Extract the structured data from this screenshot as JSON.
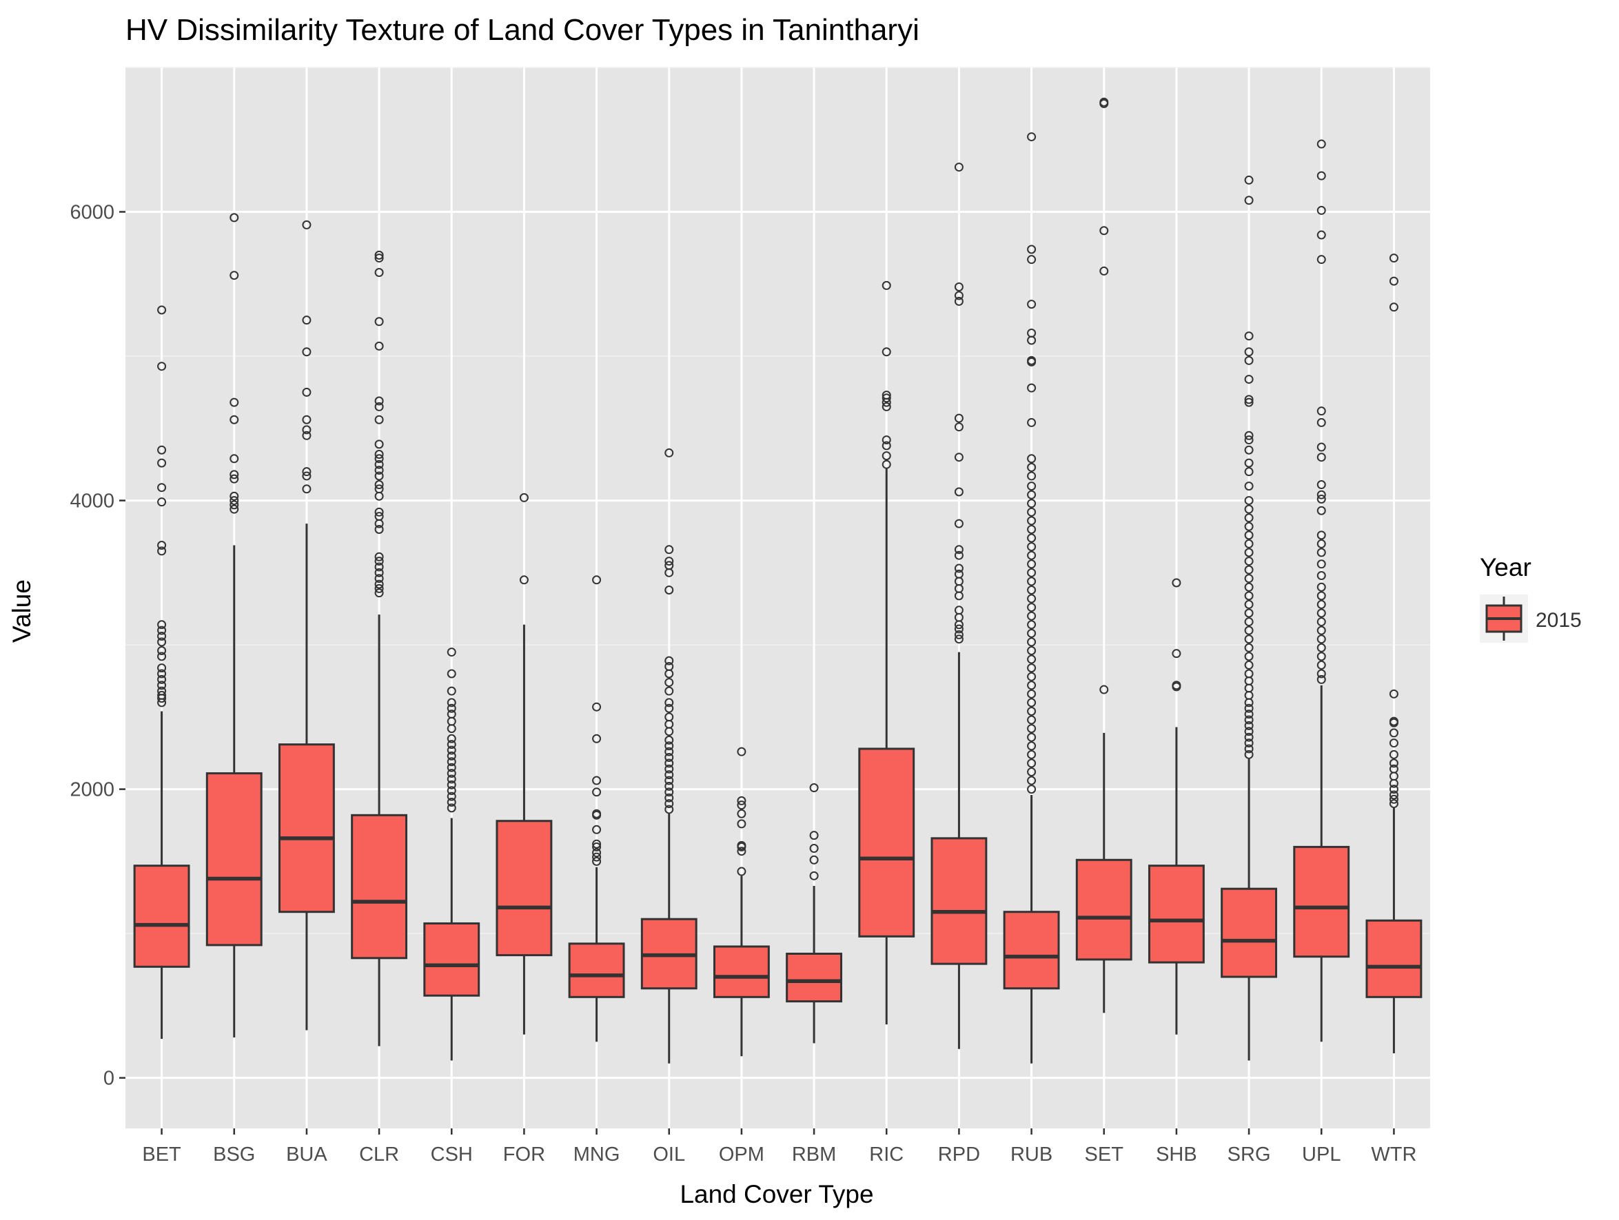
{
  "chart_data": {
    "type": "boxplot",
    "title": "HV Dissimilarity Texture of Land Cover Types in Tanintharyi",
    "xlabel": "Land Cover Type",
    "ylabel": "Value",
    "ylim": [
      -350,
      7000
    ],
    "yticks": [
      0,
      2000,
      4000,
      6000
    ],
    "grid": true,
    "background": "#e5e5e5",
    "fill_color": "#f8605a",
    "legend": {
      "title": "Year",
      "placement": "right",
      "entries": [
        {
          "label": "2015",
          "color": "#f8605a"
        }
      ]
    },
    "categories": [
      "BET",
      "BSG",
      "BUA",
      "CLR",
      "CSH",
      "FOR",
      "MNG",
      "OIL",
      "OPM",
      "RBM",
      "RIC",
      "RPD",
      "RUB",
      "SET",
      "SHB",
      "SRG",
      "UPL",
      "WTR"
    ],
    "series": [
      {
        "name": "2015",
        "boxes": [
          {
            "category": "BET",
            "min": 270,
            "q1": 770,
            "median": 1060,
            "q3": 1470,
            "max": 2540,
            "outliers": [
              2600,
              2630,
              2650,
              2680,
              2720,
              2760,
              2800,
              2840,
              2920,
              2960,
              3020,
              3060,
              3100,
              3140,
              3650,
              3690,
              3990,
              4090,
              4260,
              4350,
              4930,
              5320
            ]
          },
          {
            "category": "BSG",
            "min": 280,
            "q1": 920,
            "median": 1380,
            "q3": 2110,
            "max": 3690,
            "outliers": [
              3940,
              3970,
              4000,
              4030,
              4150,
              4180,
              4290,
              4560,
              4680,
              5560,
              5960
            ]
          },
          {
            "category": "BUA",
            "min": 330,
            "q1": 1150,
            "median": 1660,
            "q3": 2310,
            "max": 3840,
            "outliers": [
              4080,
              4170,
              4200,
              4450,
              4490,
              4560,
              4750,
              5030,
              5250,
              5910
            ]
          },
          {
            "category": "CLR",
            "min": 220,
            "q1": 830,
            "median": 1220,
            "q3": 1820,
            "max": 3210,
            "outliers": [
              3360,
              3390,
              3420,
              3460,
              3500,
              3540,
              3580,
              3610,
              3800,
              3840,
              3890,
              3920,
              4030,
              4080,
              4110,
              4170,
              4210,
              4250,
              4290,
              4320,
              4390,
              4560,
              4650,
              4690,
              5070,
              5240,
              5580,
              5680,
              5700
            ]
          },
          {
            "category": "CSH",
            "min": 120,
            "q1": 570,
            "median": 780,
            "q3": 1070,
            "max": 1800,
            "outliers": [
              1870,
              1910,
              1950,
              1990,
              2030,
              2070,
              2110,
              2150,
              2190,
              2230,
              2270,
              2310,
              2350,
              2420,
              2470,
              2520,
              2560,
              2600,
              2680,
              2800,
              2950
            ]
          },
          {
            "category": "FOR",
            "min": 300,
            "q1": 850,
            "median": 1180,
            "q3": 1780,
            "max": 3140,
            "outliers": [
              3450,
              4020
            ]
          },
          {
            "category": "MNG",
            "min": 250,
            "q1": 560,
            "median": 710,
            "q3": 930,
            "max": 1460,
            "outliers": [
              1500,
              1530,
              1560,
              1600,
              1620,
              1720,
              1820,
              1830,
              1980,
              2060,
              2350,
              2570,
              3450
            ]
          },
          {
            "category": "OIL",
            "min": 100,
            "q1": 620,
            "median": 850,
            "q3": 1100,
            "max": 1830,
            "outliers": [
              1860,
              1900,
              1940,
              1980,
              2020,
              2060,
              2100,
              2140,
              2180,
              2220,
              2260,
              2300,
              2340,
              2400,
              2450,
              2500,
              2560,
              2600,
              2680,
              2740,
              2800,
              2850,
              2890,
              3380,
              3500,
              3550,
              3580,
              3660,
              4330
            ]
          },
          {
            "category": "OPM",
            "min": 150,
            "q1": 560,
            "median": 700,
            "q3": 910,
            "max": 1400,
            "outliers": [
              1430,
              1570,
              1600,
              1610,
              1760,
              1830,
              1890,
              1920,
              2260
            ]
          },
          {
            "category": "RBM",
            "min": 240,
            "q1": 530,
            "median": 670,
            "q3": 860,
            "max": 1330,
            "outliers": [
              1400,
              1510,
              1590,
              1680,
              2010
            ]
          },
          {
            "category": "RIC",
            "min": 370,
            "q1": 980,
            "median": 1520,
            "q3": 2280,
            "max": 4220,
            "outliers": [
              4250,
              4310,
              4380,
              4420,
              4650,
              4680,
              4710,
              4730,
              5030,
              5490
            ]
          },
          {
            "category": "RPD",
            "min": 200,
            "q1": 790,
            "median": 1150,
            "q3": 1660,
            "max": 2950,
            "outliers": [
              3040,
              3070,
              3110,
              3140,
              3190,
              3240,
              3340,
              3390,
              3440,
              3490,
              3530,
              3620,
              3660,
              3840,
              4060,
              4300,
              4510,
              4570,
              5380,
              5420,
              5480,
              6310
            ]
          },
          {
            "category": "RUB",
            "min": 100,
            "q1": 620,
            "median": 840,
            "q3": 1150,
            "max": 1960,
            "outliers": [
              2000,
              2060,
              2120,
              2180,
              2240,
              2300,
              2360,
              2420,
              2480,
              2540,
              2600,
              2660,
              2720,
              2780,
              2840,
              2900,
              2960,
              3020,
              3080,
              3140,
              3200,
              3260,
              3320,
              3380,
              3440,
              3500,
              3560,
              3620,
              3680,
              3740,
              3800,
              3860,
              3920,
              3980,
              4040,
              4100,
              4170,
              4230,
              4290,
              4540,
              4780,
              4960,
              4970,
              5110,
              5160,
              5360,
              5670,
              5740,
              6520
            ]
          },
          {
            "category": "SET",
            "min": 450,
            "q1": 820,
            "median": 1110,
            "q3": 1510,
            "max": 2390,
            "outliers": [
              2690,
              5590,
              5870,
              6750,
              6760
            ]
          },
          {
            "category": "SHB",
            "min": 300,
            "q1": 800,
            "median": 1090,
            "q3": 1470,
            "max": 2430,
            "outliers": [
              2710,
              2720,
              2940,
              3430
            ]
          },
          {
            "category": "SRG",
            "min": 120,
            "q1": 700,
            "median": 950,
            "q3": 1310,
            "max": 2210,
            "outliers": [
              2240,
              2280,
              2320,
              2360,
              2400,
              2440,
              2480,
              2520,
              2560,
              2600,
              2650,
              2700,
              2750,
              2800,
              2860,
              2920,
              2980,
              3040,
              3100,
              3160,
              3220,
              3280,
              3340,
              3400,
              3460,
              3520,
              3580,
              3640,
              3700,
              3760,
              3820,
              3880,
              3940,
              4000,
              4100,
              4200,
              4260,
              4350,
              4420,
              4450,
              4680,
              4700,
              4840,
              4970,
              5030,
              5140,
              6080,
              6220
            ]
          },
          {
            "category": "UPL",
            "min": 250,
            "q1": 840,
            "median": 1180,
            "q3": 1600,
            "max": 2720,
            "outliers": [
              2760,
              2800,
              2860,
              2920,
              2980,
              3040,
              3100,
              3160,
              3220,
              3280,
              3340,
              3400,
              3480,
              3560,
              3640,
              3700,
              3760,
              3930,
              4010,
              4040,
              4110,
              4300,
              4370,
              4540,
              4620,
              5670,
              5840,
              6010,
              6250,
              6470
            ]
          },
          {
            "category": "WTR",
            "min": 170,
            "q1": 560,
            "median": 770,
            "q3": 1090,
            "max": 1870,
            "outliers": [
              1900,
              1930,
              1960,
              2000,
              2040,
              2090,
              2140,
              2180,
              2240,
              2320,
              2390,
              2460,
              2470,
              2660,
              5340,
              5520,
              5680
            ]
          }
        ]
      }
    ]
  }
}
